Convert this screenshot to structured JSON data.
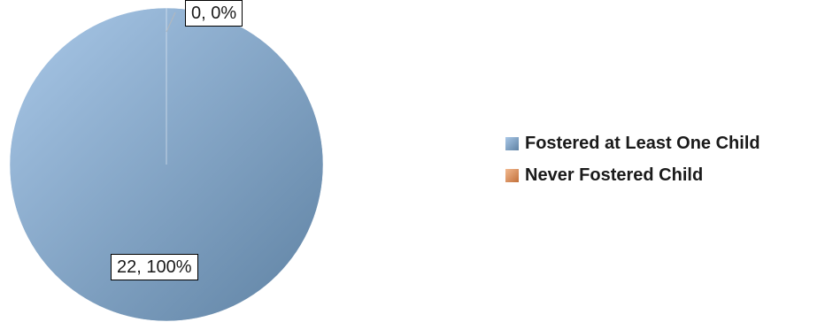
{
  "chart_data": {
    "type": "pie",
    "title": "",
    "slices": [
      {
        "label": "Fostered at Least One Child",
        "value": 22,
        "percent": "100%",
        "data_label": "22, 100%",
        "color": "#7da3c8"
      },
      {
        "label": "Never Fostered Child",
        "value": 0,
        "percent": "0%",
        "data_label": "0, 0%",
        "color": "#e0955e"
      }
    ],
    "legend_position": "right",
    "gradient": {
      "light": "#a9c8e8",
      "dark": "#5f82a3"
    }
  }
}
